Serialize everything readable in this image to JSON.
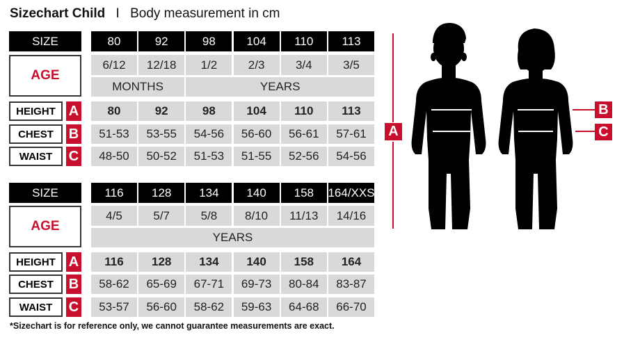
{
  "title": {
    "bold": "Sizechart Child",
    "separator": "I",
    "rest": "Body measurement in cm"
  },
  "labels": {
    "size": "SIZE",
    "age": "AGE",
    "height": "HEIGHT",
    "chest": "CHEST",
    "waist": "WAIST",
    "a": "A",
    "b": "B",
    "c": "C"
  },
  "tables": [
    {
      "sizes": [
        "80",
        "92",
        "98",
        "104",
        "110",
        "113"
      ],
      "ages": [
        "6/12",
        "12/18",
        "1/2",
        "2/3",
        "3/4",
        "3/5"
      ],
      "units": [
        {
          "label": "MONTHS",
          "span": 2
        },
        {
          "label": "YEARS",
          "span": 4
        }
      ],
      "height": [
        "80",
        "92",
        "98",
        "104",
        "110",
        "113"
      ],
      "chest": [
        "51-53",
        "53-55",
        "54-56",
        "56-60",
        "56-61",
        "57-61"
      ],
      "waist": [
        "48-50",
        "50-52",
        "51-53",
        "51-55",
        "52-56",
        "54-56"
      ]
    },
    {
      "sizes": [
        "116",
        "128",
        "134",
        "140",
        "158",
        "164/XXS"
      ],
      "ages": [
        "4/5",
        "5/7",
        "5/8",
        "8/10",
        "11/13",
        "14/16"
      ],
      "units": [
        {
          "label": "YEARS",
          "span": 6
        }
      ],
      "height": [
        "116",
        "128",
        "134",
        "140",
        "158",
        "164"
      ],
      "chest": [
        "58-62",
        "65-69",
        "67-71",
        "69-73",
        "80-84",
        "83-87"
      ],
      "waist": [
        "53-57",
        "56-60",
        "58-62",
        "59-63",
        "64-68",
        "66-70"
      ]
    }
  ],
  "footnote": "*Sizechart is for reference only, we cannot guarantee measurements are exact.",
  "colors": {
    "accent": "#c8102e",
    "cell": "#d9d9d9",
    "header": "#000000"
  }
}
